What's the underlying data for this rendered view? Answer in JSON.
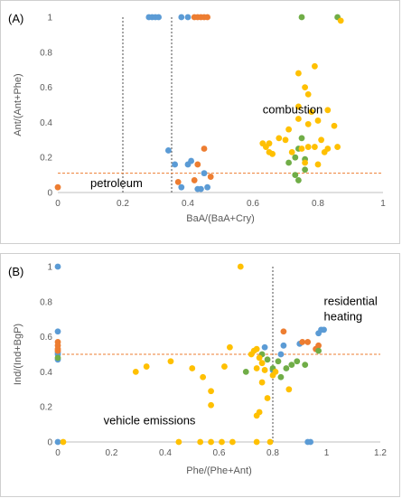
{
  "chart_data": [
    {
      "type": "scatter",
      "panel_label": "(A)",
      "xlabel": "BaA/(BaA+Cry)",
      "ylabel": "Ant/(Ant+Phe)",
      "xlim": [
        0,
        1
      ],
      "ylim": [
        0,
        1
      ],
      "x_ticks": [
        "0",
        "0.2",
        "0.4",
        "0.6",
        "0.8",
        "1"
      ],
      "y_ticks": [
        "0",
        "0.2",
        "0.4",
        "0.6",
        "0.8",
        "1"
      ],
      "grid": false,
      "annotations": [
        {
          "id": "combustion",
          "text": "combustion",
          "x": 0.63,
          "y": 0.45
        },
        {
          "id": "petroleum",
          "text": "petroleum",
          "x": 0.1,
          "y": 0.03
        }
      ],
      "vertical_lines": [
        0.2,
        0.35
      ],
      "horizontal_lines": [
        0.11
      ],
      "series": [
        {
          "color": "#5b9bd5",
          "points": [
            [
              0.28,
              1
            ],
            [
              0.29,
              1
            ],
            [
              0.3,
              1
            ],
            [
              0.31,
              1
            ],
            [
              0.38,
              1
            ],
            [
              0.4,
              1
            ],
            [
              0.34,
              0.24
            ],
            [
              0.36,
              0.16
            ],
            [
              0.4,
              0.16
            ],
            [
              0.41,
              0.18
            ],
            [
              0.43,
              0.02
            ],
            [
              0.44,
              0.02
            ],
            [
              0.45,
              0.11
            ],
            [
              0.46,
              0.03
            ],
            [
              0.38,
              0.03
            ]
          ]
        },
        {
          "color": "#ed7d31",
          "points": [
            [
              0.42,
              1
            ],
            [
              0.43,
              1
            ],
            [
              0.44,
              1
            ],
            [
              0.45,
              1
            ],
            [
              0.46,
              1
            ],
            [
              0.37,
              0.06
            ],
            [
              0.42,
              0.07
            ],
            [
              0.43,
              0.16
            ],
            [
              0.45,
              0.25
            ],
            [
              0.47,
              0.09
            ],
            [
              0,
              0.03
            ]
          ]
        },
        {
          "color": "#70ad47",
          "points": [
            [
              0.75,
              1
            ],
            [
              0.86,
              1
            ],
            [
              0.71,
              0.17
            ],
            [
              0.73,
              0.2
            ],
            [
              0.74,
              0.25
            ],
            [
              0.75,
              0.31
            ],
            [
              0.76,
              0.19
            ],
            [
              0.74,
              0.07
            ],
            [
              0.76,
              0.13
            ],
            [
              0.73,
              0.1
            ]
          ]
        },
        {
          "color": "#ffc000",
          "points": [
            [
              0.87,
              0.98
            ],
            [
              0.79,
              0.72
            ],
            [
              0.74,
              0.68
            ],
            [
              0.76,
              0.6
            ],
            [
              0.77,
              0.56
            ],
            [
              0.74,
              0.49
            ],
            [
              0.78,
              0.46
            ],
            [
              0.8,
              0.41
            ],
            [
              0.83,
              0.47
            ],
            [
              0.85,
              0.38
            ],
            [
              0.86,
              0.26
            ],
            [
              0.77,
              0.39
            ],
            [
              0.74,
              0.42
            ],
            [
              0.71,
              0.36
            ],
            [
              0.68,
              0.31
            ],
            [
              0.63,
              0.28
            ],
            [
              0.64,
              0.26
            ],
            [
              0.65,
              0.28
            ],
            [
              0.65,
              0.23
            ],
            [
              0.66,
              0.22
            ],
            [
              0.7,
              0.3
            ],
            [
              0.72,
              0.23
            ],
            [
              0.76,
              0.17
            ],
            [
              0.77,
              0.26
            ],
            [
              0.79,
              0.26
            ],
            [
              0.81,
              0.3
            ],
            [
              0.83,
              0.25
            ],
            [
              0.8,
              0.16
            ],
            [
              0.75,
              0.25
            ],
            [
              0.82,
              0.23
            ]
          ]
        }
      ]
    },
    {
      "type": "scatter",
      "panel_label": "(B)",
      "xlabel": "Phe/(Phe+Ant)",
      "ylabel": "Ind/(Ind+BgP)",
      "xlim": [
        0,
        1.2
      ],
      "ylim": [
        0,
        1
      ],
      "x_ticks": [
        "0",
        "0.2",
        "0.4",
        "0.6",
        "0.8",
        "1",
        "1.2"
      ],
      "y_ticks": [
        "0",
        "0.2",
        "0.4",
        "0.6",
        "0.8",
        "1"
      ],
      "grid": false,
      "annotations": [
        {
          "id": "residential",
          "lines": [
            "residential",
            "heating"
          ],
          "x": 0.99,
          "y": 0.78
        },
        {
          "id": "vehicle",
          "text": "vehicle emissions",
          "x": 0.17,
          "y": 0.1
        }
      ],
      "vertical_lines": [
        0.8
      ],
      "horizontal_lines": [
        0.5
      ],
      "series": [
        {
          "color": "#5b9bd5",
          "points": [
            [
              0,
              1
            ],
            [
              0,
              0.63
            ],
            [
              0,
              0.5
            ],
            [
              0,
              0.47
            ],
            [
              0,
              0.51
            ],
            [
              0,
              0
            ],
            [
              0.77,
              0.54
            ],
            [
              0.8,
              0.41
            ],
            [
              0.83,
              0.5
            ],
            [
              0.84,
              0.55
            ],
            [
              0.9,
              0.56
            ],
            [
              0.97,
              0.62
            ],
            [
              0.98,
              0.64
            ],
            [
              0.99,
              0.64
            ],
            [
              0.93,
              0
            ],
            [
              0.94,
              0
            ]
          ]
        },
        {
          "color": "#ed7d31",
          "points": [
            [
              0,
              0.57
            ],
            [
              0,
              0.55
            ],
            [
              0,
              0.53
            ],
            [
              0,
              0.52
            ],
            [
              0.84,
              0.63
            ],
            [
              0.91,
              0.57
            ],
            [
              0.93,
              0.57
            ],
            [
              0.96,
              0.53
            ],
            [
              0.97,
              0.55
            ]
          ]
        },
        {
          "color": "#70ad47",
          "points": [
            [
              0,
              0.48
            ],
            [
              0.7,
              0.4
            ],
            [
              0.76,
              0.5
            ],
            [
              0.78,
              0.47
            ],
            [
              0.8,
              0.42
            ],
            [
              0.82,
              0.46
            ],
            [
              0.85,
              0.42
            ],
            [
              0.87,
              0.44
            ],
            [
              0.89,
              0.46
            ],
            [
              0.92,
              0.44
            ],
            [
              0.83,
              0.37
            ],
            [
              0.97,
              0.52
            ]
          ]
        },
        {
          "color": "#ffc000",
          "points": [
            [
              0.68,
              1
            ],
            [
              0.29,
              0.4
            ],
            [
              0.33,
              0.43
            ],
            [
              0.42,
              0.46
            ],
            [
              0.5,
              0.42
            ],
            [
              0.54,
              0.37
            ],
            [
              0.57,
              0.29
            ],
            [
              0.57,
              0.21
            ],
            [
              0.62,
              0.43
            ],
            [
              0.64,
              0.54
            ],
            [
              0.72,
              0.5
            ],
            [
              0.73,
              0.52
            ],
            [
              0.74,
              0.53
            ],
            [
              0.75,
              0.48
            ],
            [
              0.74,
              0.42
            ],
            [
              0.76,
              0.45
            ],
            [
              0.77,
              0.41
            ],
            [
              0.76,
              0.34
            ],
            [
              0.78,
              0.25
            ],
            [
              0.8,
              0.38
            ],
            [
              0.81,
              0.4
            ],
            [
              0.74,
              0.15
            ],
            [
              0.75,
              0.17
            ],
            [
              0.86,
              0.3
            ],
            [
              0.02,
              0
            ],
            [
              0.45,
              0
            ],
            [
              0.53,
              0
            ],
            [
              0.57,
              0
            ],
            [
              0.61,
              0
            ],
            [
              0.65,
              0
            ],
            [
              0.74,
              0
            ],
            [
              0.79,
              0
            ]
          ]
        }
      ]
    }
  ]
}
